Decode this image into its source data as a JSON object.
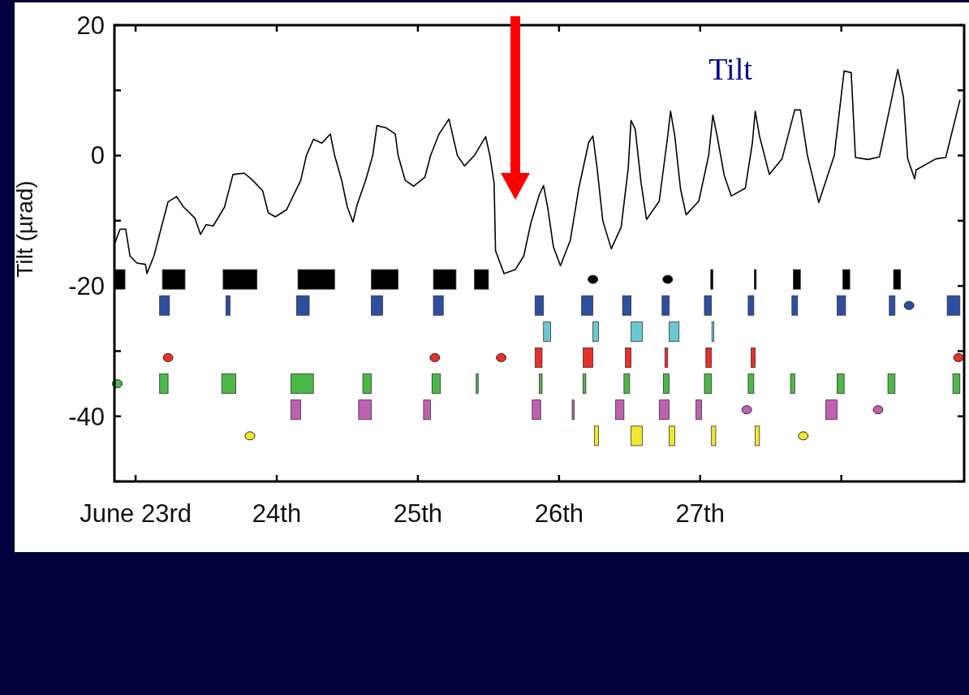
{
  "chart_data": {
    "type": "line",
    "title": "Tilt",
    "ylabel": "Tilt (µrad)",
    "xlim": [
      22.85,
      28.87
    ],
    "ylim": [
      -50,
      20
    ],
    "xticks": [
      {
        "value": 23,
        "label": "June 23rd"
      },
      {
        "value": 24,
        "label": "24th"
      },
      {
        "value": 25,
        "label": "25th"
      },
      {
        "value": 26,
        "label": "26th"
      },
      {
        "value": 27,
        "label": "27th"
      },
      {
        "value": 28,
        "label": null
      }
    ],
    "yticks": [
      20,
      {
        "value": 10,
        "label": null
      },
      0,
      {
        "value": -10,
        "label": null
      },
      -20,
      {
        "value": -30,
        "label": null
      },
      -40,
      {
        "value": -50,
        "label": null
      }
    ],
    "series": [
      {
        "color": "#000000",
        "x": [
          22.855,
          22.89,
          22.93,
          22.96,
          23.01,
          23.07,
          23.08,
          23.13,
          23.19,
          23.23,
          23.29,
          23.34,
          23.42,
          23.46,
          23.5,
          23.55,
          23.63,
          23.69,
          23.77,
          23.83,
          23.9,
          23.94,
          23.99,
          24.07,
          24.17,
          24.21,
          24.26,
          24.32,
          24.38,
          24.41,
          24.46,
          24.5,
          24.54,
          24.57,
          24.63,
          24.68,
          24.71,
          24.78,
          24.84,
          24.86,
          24.91,
          24.97,
          25.05,
          25.09,
          25.15,
          25.22,
          25.28,
          25.33,
          25.4,
          25.48,
          25.51,
          25.54,
          25.55,
          25.61,
          25.69,
          25.75,
          25.8,
          25.86,
          25.89,
          25.92,
          25.96,
          26.01,
          26.08,
          26.14,
          26.21,
          26.24,
          26.27,
          26.31,
          26.37,
          26.44,
          26.49,
          26.51,
          26.54,
          26.58,
          26.62,
          26.71,
          26.77,
          26.79,
          26.82,
          26.86,
          26.9,
          26.99,
          27.06,
          27.09,
          27.12,
          27.17,
          27.22,
          27.32,
          27.37,
          27.39,
          27.42,
          27.49,
          27.58,
          27.67,
          27.71,
          27.76,
          27.84,
          27.95,
          28.02,
          28.07,
          28.1,
          28.19,
          28.27,
          28.35,
          28.4,
          28.44,
          28.47,
          28.52,
          28.53,
          28.67,
          28.74,
          28.84
        ],
        "values": [
          -13.3,
          -11.3,
          -11.3,
          -15.4,
          -16.5,
          -16.7,
          -18.1,
          -15.4,
          -10.4,
          -7.1,
          -6.3,
          -7.9,
          -9.6,
          -12.1,
          -10.6,
          -10.8,
          -7.9,
          -2.9,
          -2.7,
          -3.8,
          -5.4,
          -8.8,
          -9.4,
          -8.3,
          -3.8,
          0,
          2.5,
          1.9,
          3.3,
          0,
          -3.8,
          -7.9,
          -10.2,
          -7.5,
          -3.8,
          0,
          4.6,
          4.2,
          3.3,
          0,
          -3.8,
          -4.7,
          -3.3,
          0,
          3.3,
          5.6,
          0,
          -1.6,
          0,
          2.9,
          0,
          -4.2,
          -14.6,
          -18.1,
          -17.5,
          -15.4,
          -10.4,
          -6,
          -4.6,
          -8,
          -14,
          -16.9,
          -13,
          -5,
          2,
          3,
          -2,
          -10,
          -14.3,
          -11,
          -2,
          5.4,
          4,
          -4,
          -9.8,
          -7,
          3,
          6.8,
          3,
          -5,
          -9.1,
          -7,
          0,
          6.2,
          3,
          -3,
          -6.2,
          -5,
          2,
          6.8,
          3,
          -2.9,
          -0.5,
          7,
          7,
          0,
          -7.2,
          0,
          13,
          12.7,
          -0.3,
          -0.6,
          -0.2,
          8,
          13.2,
          9,
          -0.5,
          -3.6,
          -2.2,
          -0.5,
          -0.3,
          8.5
        ]
      },
      {
        "type": "histogram",
        "color": "#000000",
        "bins": [
          22.855,
          22.925,
          23.19,
          23.35,
          23.62,
          23.86,
          24.15,
          24.41,
          24.67,
          24.86,
          25.11,
          25.27,
          25.4,
          25.5,
          27.075,
          27.09,
          27.383,
          27.397,
          27.66,
          27.71,
          28.01,
          28.06,
          28.37,
          28.42
        ],
        "values": [
          3,
          null,
          3,
          null,
          3,
          null,
          3,
          null,
          3,
          null,
          3,
          null,
          3,
          null,
          3,
          null,
          3,
          null,
          3,
          null,
          3,
          null,
          3
        ],
        "base": [
          -20.5,
          null,
          -20.5,
          null,
          -20.5,
          null,
          -20.5,
          null,
          -20.5,
          null,
          -20.5,
          null,
          -20.5,
          null,
          -20.5,
          null,
          -20.5,
          null,
          -20.5,
          null,
          -20.5,
          null,
          -20.5
        ]
      },
      {
        "type": "scatter",
        "color": "#000000",
        "x": [
          26.24,
          26.77
        ],
        "values": [
          -19,
          -19
        ]
      },
      {
        "type": "histogram",
        "color": "#2e4fa0",
        "bins": [
          23.17,
          23.24,
          23.64,
          23.67,
          24.14,
          24.23,
          24.67,
          24.75,
          25.11,
          25.18,
          25.83,
          25.89,
          26.16,
          26.24,
          26.45,
          26.51,
          26.73,
          26.78,
          27.03,
          27.08,
          27.34,
          27.38,
          27.65,
          27.69,
          27.97,
          28.03,
          28.34,
          28.38,
          28.75,
          28.84
        ],
        "values": [
          3,
          null,
          3,
          null,
          3,
          null,
          3,
          null,
          3,
          null,
          3,
          null,
          3,
          null,
          3,
          null,
          3,
          null,
          3,
          null,
          3,
          null,
          3,
          null,
          3,
          null,
          3,
          null,
          3
        ],
        "base": [
          -24.5,
          null,
          -24.5,
          null,
          -24.5,
          null,
          -24.5,
          null,
          -24.5,
          null,
          -24.5,
          null,
          -24.5,
          null,
          -24.5,
          null,
          -24.5,
          null,
          -24.5,
          null,
          -24.5,
          null,
          -24.5,
          null,
          -24.5,
          null,
          -24.5,
          null,
          -24.5
        ]
      },
      {
        "type": "scatter",
        "color": "#2e4fa0",
        "x": [
          28.48
        ],
        "values": [
          -23
        ]
      },
      {
        "type": "histogram",
        "color": "#6cc8d0",
        "bins": [
          25.89,
          25.94,
          26.24,
          26.28,
          26.51,
          26.59,
          26.78,
          26.85,
          27.083,
          27.097
        ],
        "values": [
          3,
          null,
          3,
          null,
          3,
          null,
          3,
          null,
          3
        ],
        "base": [
          -28.5,
          null,
          -28.5,
          null,
          -28.5,
          null,
          -28.5,
          null,
          -28.5
        ]
      },
      {
        "type": "histogram",
        "color": "#e8302a",
        "bins": [
          25.83,
          25.88,
          26.17,
          26.24,
          26.47,
          26.51,
          26.75,
          26.77,
          27.04,
          27.08,
          27.36,
          27.39
        ],
        "values": [
          3,
          null,
          3,
          null,
          3,
          null,
          3,
          null,
          3,
          null,
          3
        ],
        "base": [
          -32.5,
          null,
          -32.5,
          null,
          -32.5,
          null,
          -32.5,
          null,
          -32.5,
          null,
          -32.5
        ]
      },
      {
        "type": "scatter",
        "color": "#e8302a",
        "x": [
          23.23,
          25.12,
          25.59,
          28.83
        ],
        "values": [
          -31,
          -31,
          -31,
          -31
        ]
      },
      {
        "type": "histogram",
        "color": "#4cb848",
        "bins": [
          23.17,
          23.23,
          23.61,
          23.71,
          24.1,
          24.26,
          24.61,
          24.67,
          25.1,
          25.16,
          25.413,
          25.427,
          25.86,
          25.88,
          26.17,
          26.19,
          26.46,
          26.5,
          26.74,
          26.78,
          27.03,
          27.08,
          27.34,
          27.38,
          27.64,
          27.67,
          27.97,
          28.02,
          28.33,
          28.38,
          28.79,
          28.84
        ],
        "values": [
          3,
          null,
          3,
          null,
          3,
          null,
          3,
          null,
          3,
          null,
          3,
          null,
          3,
          null,
          3,
          null,
          3,
          null,
          3,
          null,
          3,
          null,
          3,
          null,
          3,
          null,
          3,
          null,
          3,
          null,
          3
        ],
        "base": [
          -36.5,
          null,
          -36.5,
          null,
          -36.5,
          null,
          -36.5,
          null,
          -36.5,
          null,
          -36.5,
          null,
          -36.5,
          null,
          -36.5,
          null,
          -36.5,
          null,
          -36.5,
          null,
          -36.5,
          null,
          -36.5,
          null,
          -36.5,
          null,
          -36.5,
          null,
          -36.5,
          null,
          -36.5
        ]
      },
      {
        "type": "scatter",
        "color": "#4cb848",
        "x": [
          22.87
        ],
        "values": [
          -35
        ]
      },
      {
        "type": "histogram",
        "color": "#c060b0",
        "bins": [
          24.1,
          24.17,
          24.58,
          24.67,
          25.04,
          25.09,
          25.81,
          25.87,
          26.093,
          26.107,
          26.4,
          26.46,
          26.71,
          26.78,
          26.97,
          27.01,
          27.89,
          27.97
        ],
        "values": [
          3,
          null,
          3,
          null,
          3,
          null,
          3,
          null,
          3,
          null,
          3,
          null,
          3,
          null,
          3,
          null,
          3
        ],
        "base": [
          -40.5,
          null,
          -40.5,
          null,
          -40.5,
          null,
          -40.5,
          null,
          -40.5,
          null,
          -40.5,
          null,
          -40.5,
          null,
          -40.5,
          null,
          -40.5
        ]
      },
      {
        "type": "scatter",
        "color": "#c060b0",
        "x": [
          27.33,
          28.26
        ],
        "values": [
          -39,
          -39
        ]
      },
      {
        "type": "histogram",
        "color": "#f0e830",
        "bins": [
          26.25,
          26.28,
          26.51,
          26.59,
          26.78,
          26.82,
          27.08,
          27.11,
          27.39,
          27.42
        ],
        "values": [
          3,
          null,
          3,
          null,
          3,
          null,
          3,
          null,
          3
        ],
        "base": [
          -44.5,
          null,
          -44.5,
          null,
          -44.5,
          null,
          -44.5,
          null,
          -44.5
        ]
      },
      {
        "type": "scatter",
        "color": "#f0e830",
        "x": [
          23.81,
          27.73
        ],
        "values": [
          -43,
          -43
        ]
      }
    ]
  }
}
